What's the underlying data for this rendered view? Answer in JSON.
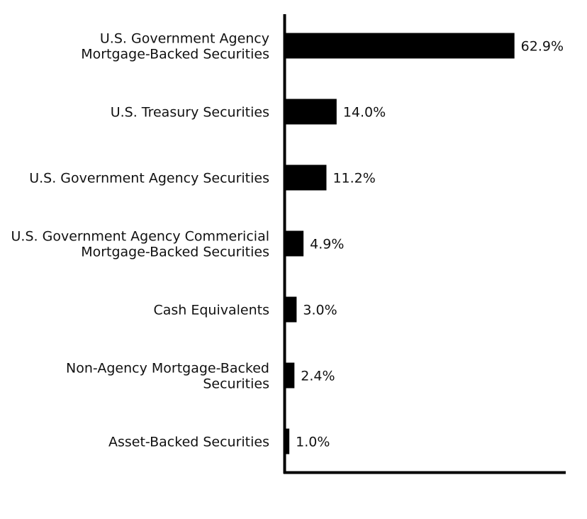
{
  "chart_data": {
    "type": "bar",
    "orientation": "horizontal",
    "categories": [
      [
        "U.S. Government Agency",
        "Mortgage-Backed Securities"
      ],
      [
        "U.S. Treasury Securities"
      ],
      [
        "U.S. Government Agency Securities"
      ],
      [
        "U.S. Government Agency Commericial",
        "Mortgage-Backed Securities"
      ],
      [
        "Cash Equivalents"
      ],
      [
        "Non-Agency Mortgage-Backed",
        "Securities"
      ],
      [
        "Asset-Backed Securities"
      ]
    ],
    "values": [
      62.9,
      14.0,
      11.2,
      4.9,
      3.0,
      2.4,
      1.0
    ],
    "value_labels": [
      "62.9%",
      "14.0%",
      "11.2%",
      "4.9%",
      "3.0%",
      "2.4%",
      "1.0%"
    ],
    "xlim": [
      0,
      77
    ],
    "bar_color": "#000000",
    "grid": false,
    "legend": "none"
  }
}
